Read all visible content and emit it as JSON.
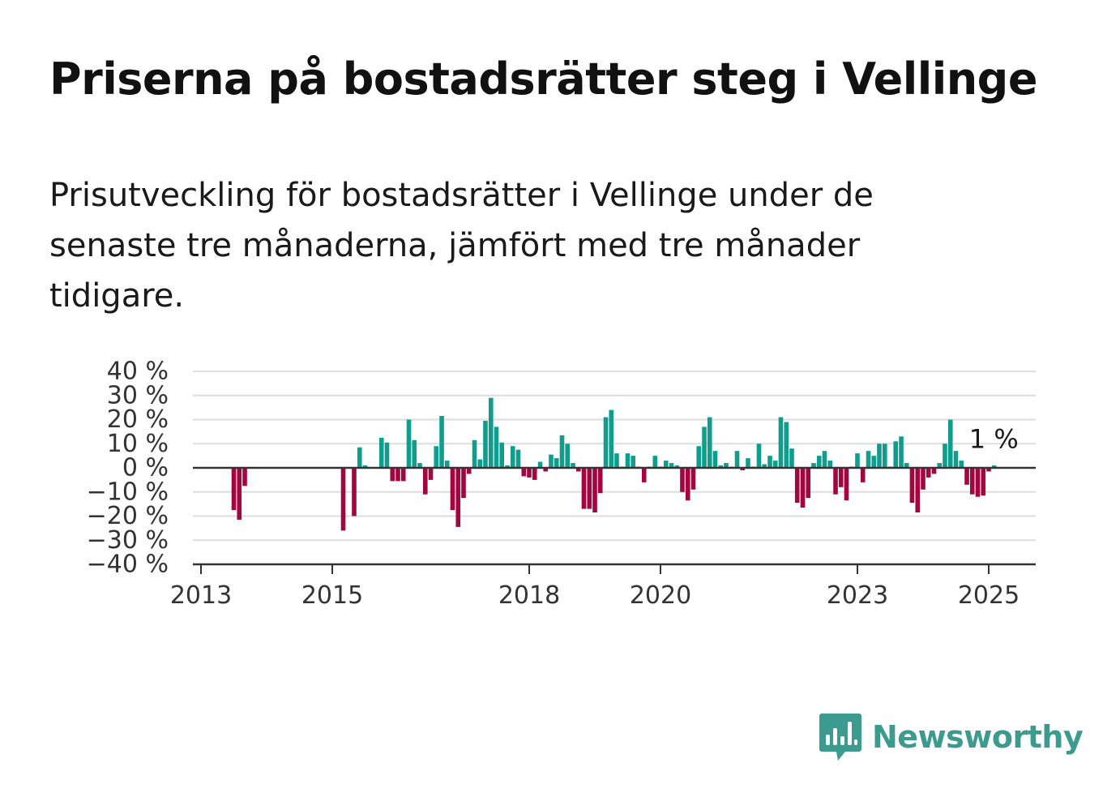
{
  "title": "Priserna på bostadsrätter steg i Vellinge",
  "subtitle": "Prisutveckling för bostadsrätter i Vellinge under de senaste tre månaderna, jämfört med tre månader tidigare.",
  "brand": {
    "name": "Newsworthy",
    "icon": "newsworthy-logo-icon",
    "color": "#3b9b8f"
  },
  "colors": {
    "positive": "#0f9e8e",
    "negative": "#a3063f",
    "grid": "#dddddd",
    "axis": "#333333"
  },
  "chart_data": {
    "type": "bar",
    "title": "",
    "xlabel": "",
    "ylabel": "",
    "ylim": [
      -40,
      40
    ],
    "xlim": [
      2013,
      2025.7
    ],
    "y_ticks": [
      40,
      30,
      20,
      10,
      0,
      -10,
      -20,
      -30,
      -40
    ],
    "y_tick_labels": [
      "40 %",
      "30 %",
      "20 %",
      "10 %",
      "0 %",
      "−10 %",
      "−20 %",
      "−30 %",
      "−40 %"
    ],
    "x_ticks": [
      2013,
      2015,
      2018,
      2020,
      2023,
      2025
    ],
    "x_tick_labels": [
      "2013",
      "2015",
      "2018",
      "2020",
      "2023",
      "2025"
    ],
    "grid": true,
    "last_label": "1 %",
    "x": [
      2013.5,
      2013.583,
      2013.667,
      2015.167,
      2015.333,
      2015.417,
      2015.5,
      2015.75,
      2015.833,
      2015.917,
      2016.0,
      2016.083,
      2016.167,
      2016.25,
      2016.333,
      2016.417,
      2016.5,
      2016.583,
      2016.667,
      2016.75,
      2016.833,
      2016.917,
      2017.0,
      2017.083,
      2017.167,
      2017.25,
      2017.333,
      2017.417,
      2017.5,
      2017.583,
      2017.667,
      2017.75,
      2017.833,
      2017.917,
      2018.0,
      2018.083,
      2018.167,
      2018.25,
      2018.333,
      2018.417,
      2018.5,
      2018.583,
      2018.667,
      2018.75,
      2018.833,
      2018.917,
      2019.0,
      2019.083,
      2019.167,
      2019.25,
      2019.333,
      2019.417,
      2019.5,
      2019.583,
      2019.667,
      2019.75,
      2019.833,
      2019.917,
      2020.0,
      2020.083,
      2020.167,
      2020.25,
      2020.333,
      2020.417,
      2020.5,
      2020.583,
      2020.667,
      2020.75,
      2020.833,
      2020.917,
      2021.0,
      2021.083,
      2021.167,
      2021.25,
      2021.333,
      2021.417,
      2021.5,
      2021.583,
      2021.667,
      2021.75,
      2021.833,
      2021.917,
      2022.0,
      2022.083,
      2022.167,
      2022.25,
      2022.333,
      2022.417,
      2022.5,
      2022.583,
      2022.667,
      2022.75,
      2022.833,
      2022.917,
      2023.0,
      2023.083,
      2023.167,
      2023.25,
      2023.333,
      2023.417,
      2023.5,
      2023.583,
      2023.667,
      2023.75,
      2023.833,
      2023.917,
      2024.0,
      2024.083,
      2024.167,
      2024.25,
      2024.333,
      2024.417,
      2024.5,
      2024.583,
      2024.667,
      2024.75,
      2024.833,
      2024.917,
      2025.0,
      2025.083
    ],
    "values": [
      -17.5,
      -21.5,
      -7.5,
      -26,
      -20,
      8.5,
      1,
      12.5,
      10.5,
      -5.5,
      -5.5,
      -5.5,
      20,
      11.5,
      2,
      -11,
      -5,
      9,
      21.5,
      3,
      -17.5,
      -24.5,
      -12.5,
      -2.5,
      11.5,
      3.5,
      19.5,
      29,
      17,
      10.5,
      1,
      9,
      7.5,
      -3.5,
      -4,
      -5,
      2.5,
      -1.5,
      5.5,
      4,
      13.5,
      10,
      2,
      -1.5,
      -17,
      -17,
      -18.5,
      -10.5,
      21,
      24,
      6,
      0.5,
      6,
      5,
      0.5,
      -6,
      0.5,
      5,
      0.5,
      3,
      2,
      1,
      -10,
      -13.5,
      -9,
      9,
      17,
      21,
      7,
      1,
      2,
      0.5,
      7,
      -1,
      4,
      0.5,
      10,
      1.5,
      5,
      3,
      21,
      19,
      8,
      -14.5,
      -16.5,
      -12.5,
      2,
      5,
      7,
      3,
      -11,
      -8,
      -13.5,
      0.5,
      6,
      -6,
      7,
      5,
      10,
      10,
      0.5,
      11,
      13,
      2,
      -14.5,
      -18.5,
      -9,
      -4,
      -2.5,
      2,
      10,
      20,
      7,
      3,
      -7,
      -11,
      -12,
      -11.5,
      -1.5,
      1
    ]
  }
}
